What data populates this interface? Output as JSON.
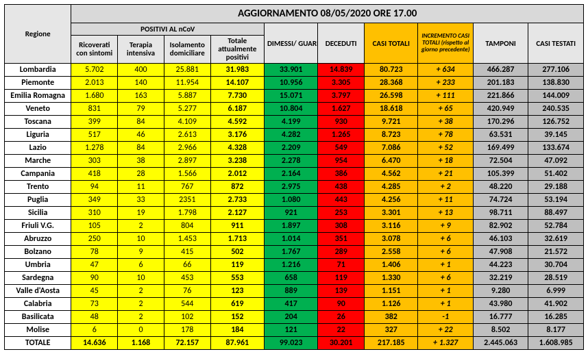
{
  "title": "AGGIORNAMENTO 08/05/2020 ORE 17.00",
  "headers": {
    "region": "Regione",
    "positive_group": "POSITIVI AL nCoV",
    "ricoverati": "Ricoverati con sintomi",
    "terapia": "Terapia intensiva",
    "isolamento": "Isolamento domiciliare",
    "totale_pos": "Totale attualmente positivi",
    "dimessi": "DIMESSI/ GUARITI",
    "deceduti": "DECEDUTI",
    "casi_totali": "CASI TOTALI",
    "incremento": "INCREMENTO CASI TOTALI (rispetto al giorno precedente)",
    "tamponi": "TAMPONI",
    "casi_testati": "CASI TESTATI"
  },
  "rows": [
    {
      "r": "Lombardia",
      "v": [
        "5.702",
        "400",
        "25.881",
        "31.983",
        "33.901",
        "14.839",
        "80.723",
        "+ 634",
        "466.287",
        "277.106"
      ]
    },
    {
      "r": "Piemonte",
      "v": [
        "2.013",
        "140",
        "11.954",
        "14.107",
        "10.956",
        "3.305",
        "28.368",
        "+ 233",
        "201.183",
        "138.830"
      ]
    },
    {
      "r": "Emilia Romagna",
      "v": [
        "1.680",
        "163",
        "5.887",
        "7.730",
        "15.071",
        "3.797",
        "26.598",
        "+ 111",
        "221.866",
        "144.009"
      ]
    },
    {
      "r": "Veneto",
      "v": [
        "831",
        "79",
        "5.277",
        "6.187",
        "10.804",
        "1.627",
        "18.618",
        "+ 65",
        "420.949",
        "240.535"
      ]
    },
    {
      "r": "Toscana",
      "v": [
        "399",
        "84",
        "4.109",
        "4.592",
        "4.199",
        "930",
        "9.721",
        "+ 38",
        "170.296",
        "126.752"
      ]
    },
    {
      "r": "Liguria",
      "v": [
        "517",
        "46",
        "2.613",
        "3.176",
        "4.282",
        "1.265",
        "8.723",
        "+ 78",
        "63.531",
        "39.145"
      ]
    },
    {
      "r": "Lazio",
      "v": [
        "1.278",
        "84",
        "2.966",
        "4.328",
        "2.209",
        "549",
        "7.086",
        "+ 52",
        "169.499",
        "133.674"
      ]
    },
    {
      "r": "Marche",
      "v": [
        "303",
        "38",
        "2.897",
        "3.238",
        "2.278",
        "954",
        "6.470",
        "+ 18",
        "72.504",
        "47.092"
      ]
    },
    {
      "r": "Campania",
      "v": [
        "418",
        "28",
        "1.566",
        "2.012",
        "2.164",
        "386",
        "4.562",
        "+ 21",
        "105.399",
        "51.402"
      ]
    },
    {
      "r": "Trento",
      "v": [
        "94",
        "11",
        "767",
        "872",
        "2.975",
        "438",
        "4.285",
        "+ 2",
        "48.220",
        "29.188"
      ]
    },
    {
      "r": "Puglia",
      "v": [
        "349",
        "33",
        "2351",
        "2.733",
        "1.080",
        "443",
        "4.256",
        "+ 11",
        "74.724",
        "53.194"
      ]
    },
    {
      "r": "Sicilia",
      "v": [
        "310",
        "19",
        "1.798",
        "2.127",
        "921",
        "253",
        "3.301",
        "+ 13",
        "98.711",
        "88.497"
      ]
    },
    {
      "r": "Friuli V.G.",
      "v": [
        "105",
        "2",
        "804",
        "911",
        "1.897",
        "308",
        "3.116",
        "+ 9",
        "82.902",
        "52.784"
      ]
    },
    {
      "r": "Abruzzo",
      "v": [
        "250",
        "10",
        "1.453",
        "1.713",
        "1.014",
        "351",
        "3.078",
        "+ 6",
        "46.103",
        "32.619"
      ]
    },
    {
      "r": "Bolzano",
      "v": [
        "78",
        "9",
        "415",
        "502",
        "1.767",
        "289",
        "2.558",
        "+ 6",
        "47.908",
        "21.572"
      ]
    },
    {
      "r": "Umbria",
      "v": [
        "47",
        "6",
        "66",
        "119",
        "1.216",
        "71",
        "1.406",
        "+ 1",
        "44.223",
        "30.704"
      ]
    },
    {
      "r": "Sardegna",
      "v": [
        "90",
        "10",
        "453",
        "553",
        "658",
        "119",
        "1.330",
        "+ 6",
        "32.219",
        "28.519"
      ]
    },
    {
      "r": "Valle d'Aosta",
      "v": [
        "45",
        "2",
        "76",
        "123",
        "889",
        "139",
        "1.151",
        "+ 1",
        "9.280",
        "6.999"
      ]
    },
    {
      "r": "Calabria",
      "v": [
        "73",
        "2",
        "544",
        "619",
        "417",
        "90",
        "1.126",
        "+ 1",
        "43.980",
        "41.902"
      ]
    },
    {
      "r": "Basilicata",
      "v": [
        "48",
        "2",
        "102",
        "152",
        "204",
        "26",
        "382",
        "-1",
        "16.777",
        "16.285"
      ]
    },
    {
      "r": "Molise",
      "v": [
        "6",
        "0",
        "178",
        "184",
        "121",
        "22",
        "327",
        "+ 22",
        "8.502",
        "8.177"
      ]
    }
  ],
  "total": {
    "r": "TOTALE",
    "v": [
      "14.636",
      "1.168",
      "72.157",
      "87.961",
      "99.023",
      "30.201",
      "217.185",
      "+ 1.327",
      "2.445.063",
      "1.608.985"
    ]
  },
  "col_colors": [
    "c-yellow",
    "c-yellow",
    "c-yellow",
    "c-yellow",
    "c-green",
    "c-red",
    "c-orange",
    "c-orangeInc",
    "c-gray",
    "c-gray"
  ]
}
